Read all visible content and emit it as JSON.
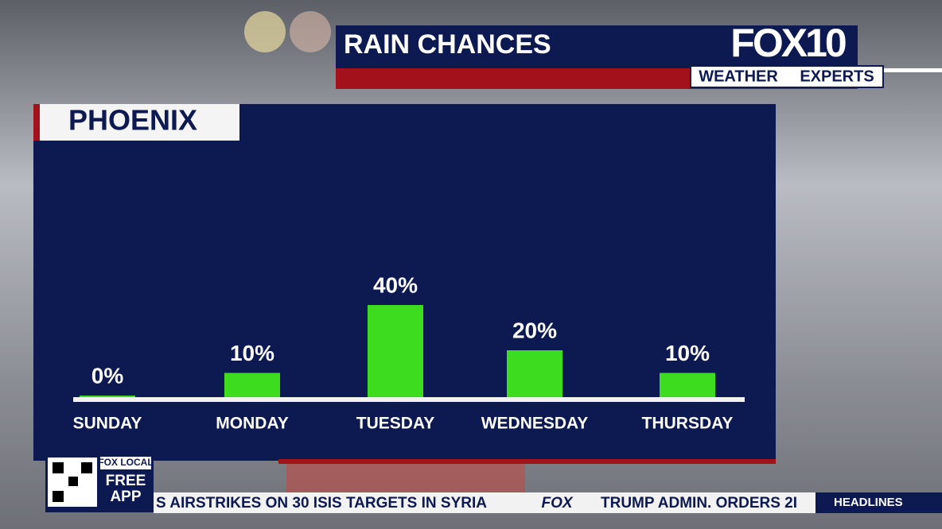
{
  "chart_data": {
    "type": "bar",
    "title": "RAIN CHANCES",
    "subtitle": "PHOENIX",
    "categories": [
      "SUNDAY",
      "MONDAY",
      "TUESDAY",
      "WEDNESDAY",
      "THURSDAY"
    ],
    "values": [
      0,
      10,
      40,
      20,
      10
    ],
    "value_labels": [
      "0%",
      "10%",
      "40%",
      "20%",
      "10%"
    ],
    "color": "#3ddc1e"
  },
  "branding": {
    "logo": "FOX10",
    "tag_left": "WEATHER",
    "tag_right": "EXPERTS",
    "app_brand": "FOX LOCAL",
    "app_line1": "FREE",
    "app_line2": "APP"
  },
  "ticker": {
    "left": "S AIRSTRIKES ON 30 ISIS TARGETS IN SYRIA",
    "logo": "FOX",
    "right": "TRUMP ADMIN. ORDERS 2I",
    "section": "HEADLINES"
  }
}
